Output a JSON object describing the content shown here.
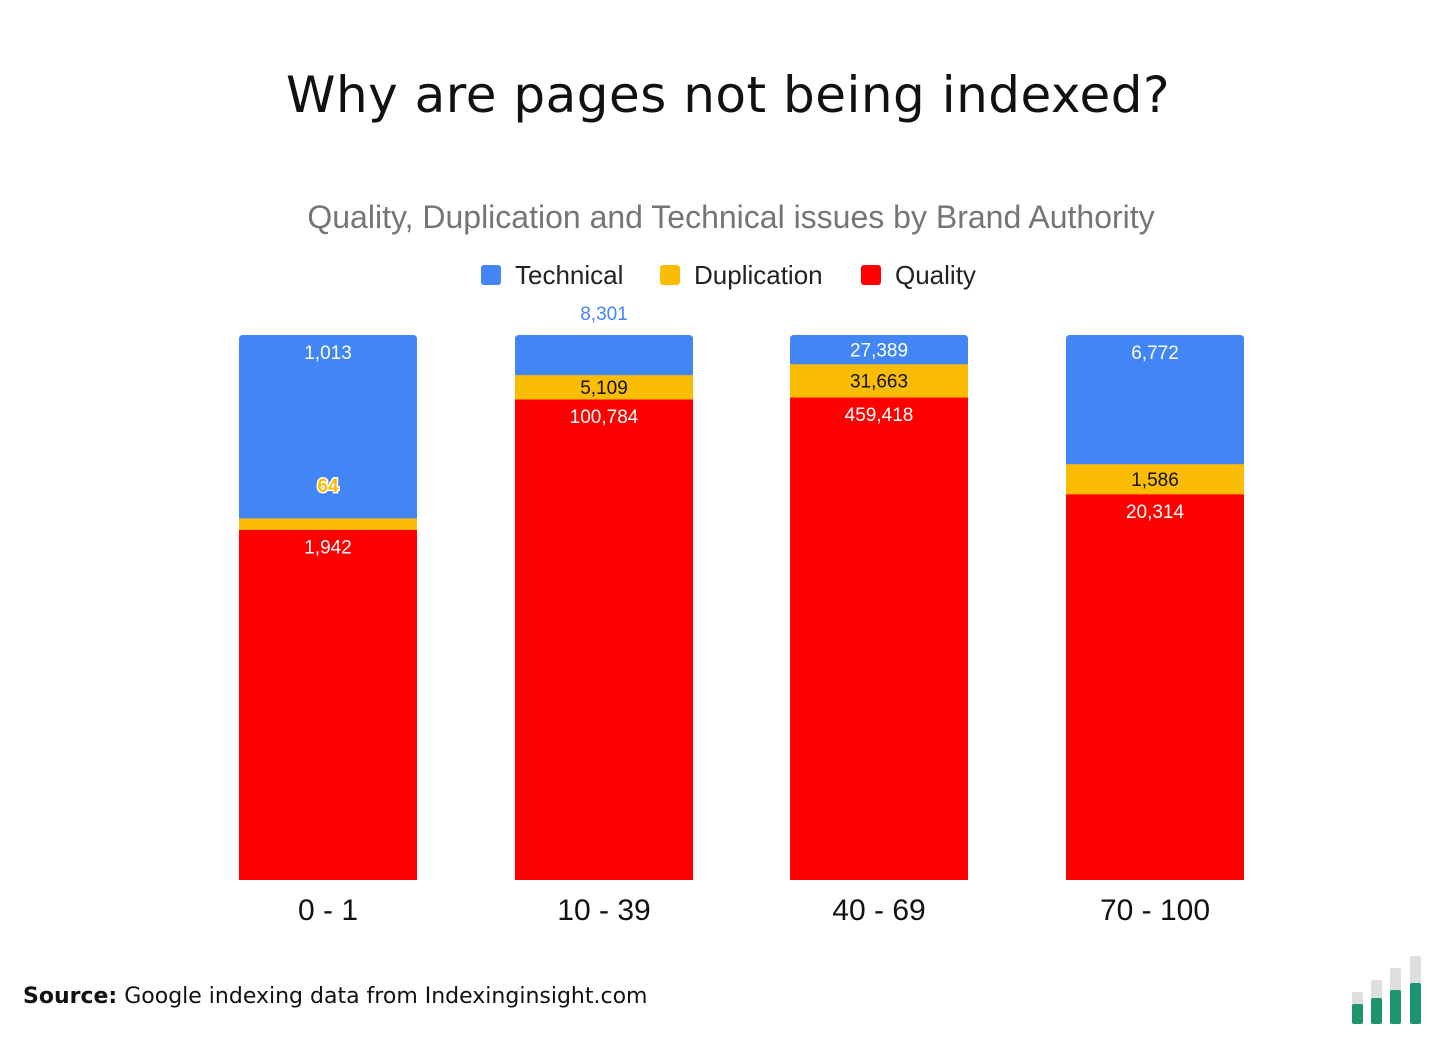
{
  "page": {
    "title": "Why are pages not being indexed?",
    "source_label": "Source:",
    "source_text": "Google indexing data from Indexinginsight.com",
    "logo_icon": "bar-chart-logo-icon"
  },
  "colors": {
    "technical": "#4285F4",
    "duplication": "#FBBC04",
    "quality": "#FF0000",
    "logo_fill": "#1E9370",
    "logo_bg": "#DEDEDE"
  },
  "chart_data": {
    "type": "bar",
    "stacked": "percent",
    "title": "Quality, Duplication and Technical issues by Brand Authority",
    "xlabel": "",
    "ylabel": "",
    "grid": false,
    "legend_position": "top-center",
    "categories": [
      "0 - 1",
      "10 - 39",
      "40 - 69",
      "70 - 100"
    ],
    "series": [
      {
        "name": "Quality",
        "color": "#FF0000",
        "values": [
          1942,
          100784,
          459418,
          20314
        ],
        "labels": [
          "1,942",
          "100,784",
          "459,418",
          "20,314"
        ]
      },
      {
        "name": "Duplication",
        "color": "#FBBC04",
        "values": [
          64,
          5109,
          31663,
          1586
        ],
        "labels": [
          "64",
          "5,109",
          "31,663",
          "1,586"
        ]
      },
      {
        "name": "Technical",
        "color": "#4285F4",
        "values": [
          1013,
          8301,
          27389,
          6772
        ],
        "labels": [
          "1,013",
          "8,301",
          "27,389",
          "6,772"
        ]
      }
    ],
    "legend": [
      "Technical",
      "Duplication",
      "Quality"
    ]
  }
}
